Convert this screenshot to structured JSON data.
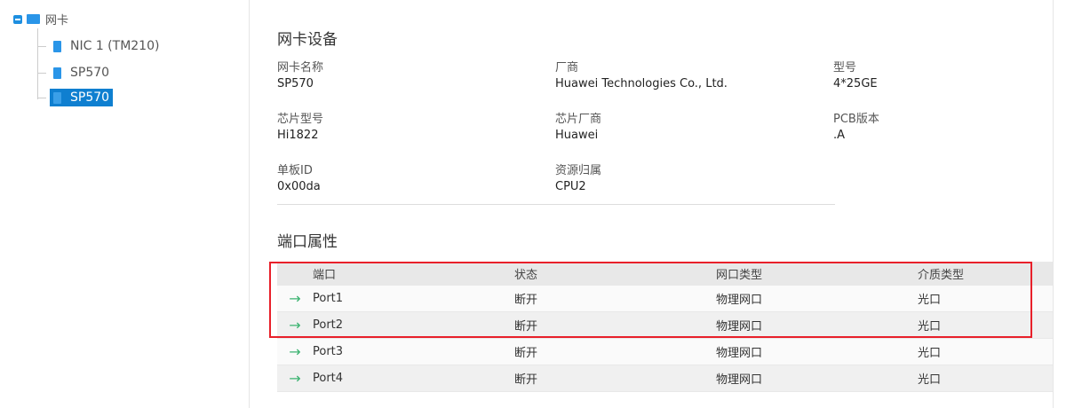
{
  "tree": {
    "root": "网卡",
    "items": [
      {
        "label": "NIC 1 (TM210)"
      },
      {
        "label": "SP570"
      },
      {
        "label": "SP570",
        "selected": true
      }
    ]
  },
  "device": {
    "title": "网卡设备",
    "fields": [
      {
        "label": "网卡名称",
        "value": "SP570"
      },
      {
        "label": "厂商",
        "value": "Huawei Technologies Co., Ltd."
      },
      {
        "label": "型号",
        "value": "4*25GE"
      },
      {
        "label": "芯片型号",
        "value": "Hi1822"
      },
      {
        "label": "芯片厂商",
        "value": "Huawei"
      },
      {
        "label": "PCB版本",
        "value": ".A"
      },
      {
        "label": "单板ID",
        "value": "0x00da"
      },
      {
        "label": "资源归属",
        "value": "CPU2"
      }
    ]
  },
  "ports": {
    "title": "端口属性",
    "columns": [
      "端口",
      "状态",
      "网口类型",
      "介质类型"
    ],
    "rows": [
      [
        "Port1",
        "断开",
        "物理网口",
        "光口"
      ],
      [
        "Port2",
        "断开",
        "物理网口",
        "光口"
      ],
      [
        "Port3",
        "断开",
        "物理网口",
        "光口"
      ],
      [
        "Port4",
        "断开",
        "物理网口",
        "光口"
      ]
    ],
    "row_icon": "arrow-right-icon",
    "highlight_color": "#e8202a"
  }
}
